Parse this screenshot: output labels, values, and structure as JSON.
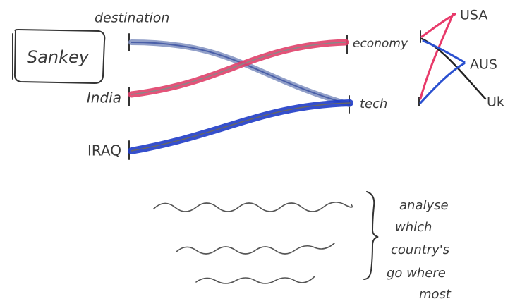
{
  "title": "Sankey",
  "axis_label": "destination",
  "left_nodes": [
    "India",
    "IRAQ"
  ],
  "middle_nodes": [
    "economy",
    "tech"
  ],
  "right_nodes": [
    "USA",
    "AUS",
    "Uk"
  ],
  "note": [
    "analyse",
    "which",
    "country's",
    "go where",
    "most"
  ]
}
